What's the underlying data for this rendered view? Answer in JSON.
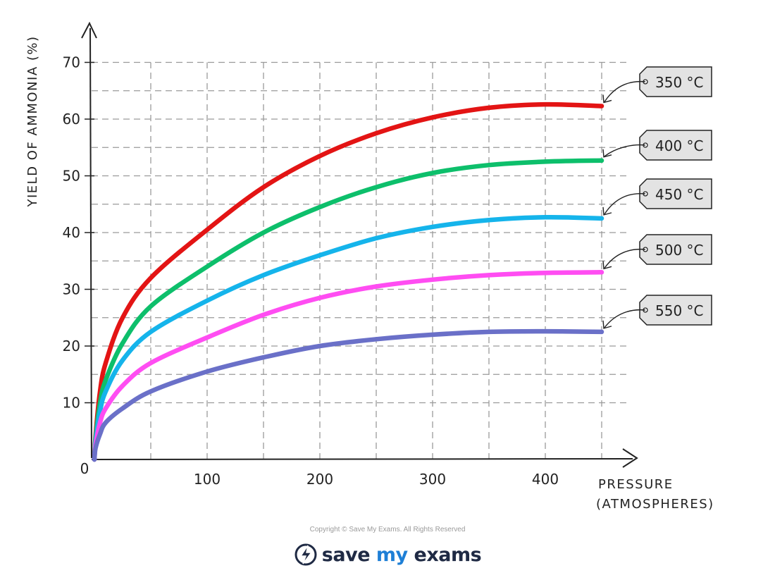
{
  "chart_data": {
    "type": "line",
    "xlabel_line1": "PRESSURE",
    "xlabel_line2": "(ATMOSPHERES)",
    "ylabel": "YIELD OF AMMONIA (%)",
    "xlim": [
      0,
      450
    ],
    "ylim": [
      0,
      70
    ],
    "x_ticks": [
      100,
      200,
      300,
      400
    ],
    "y_ticks": [
      10,
      20,
      30,
      40,
      50,
      60,
      70
    ],
    "origin_label": "0",
    "grid": true,
    "grid_style": "dashed",
    "x": [
      0,
      1,
      5,
      10,
      25,
      50,
      100,
      150,
      200,
      250,
      300,
      350,
      400,
      450
    ],
    "series": [
      {
        "name": "350 °C",
        "color": "#e31414",
        "values": [
          0,
          4,
          12,
          17,
          25,
          32,
          40.5,
          48,
          53.5,
          57.5,
          60.3,
          62,
          62.6,
          62.3
        ]
      },
      {
        "name": "400 °C",
        "color": "#0dbf6b",
        "values": [
          0,
          3.5,
          10,
          14,
          20.5,
          27,
          34,
          40,
          44.5,
          48,
          50.5,
          51.9,
          52.5,
          52.7
        ]
      },
      {
        "name": "450 °C",
        "color": "#15b4eb",
        "values": [
          0,
          3,
          8.5,
          12,
          17.5,
          22.5,
          28,
          32.5,
          36,
          39,
          41,
          42.2,
          42.7,
          42.5
        ]
      },
      {
        "name": "500 °C",
        "color": "#ff4df2",
        "values": [
          0,
          2.5,
          6.5,
          9,
          13,
          17,
          21.5,
          25.5,
          28.5,
          30.5,
          31.7,
          32.5,
          32.9,
          33
        ]
      },
      {
        "name": "550 °C",
        "color": "#6a70c8",
        "values": [
          0,
          2,
          4.5,
          6.5,
          9,
          12,
          15.5,
          18,
          20,
          21.2,
          22,
          22.5,
          22.6,
          22.5
        ]
      }
    ]
  },
  "footer": {
    "copyright": "Copyright © Save My Exams. All Rights Reserved",
    "logo_text_a": "save",
    "logo_text_b": "my",
    "logo_text_c": "exams"
  }
}
